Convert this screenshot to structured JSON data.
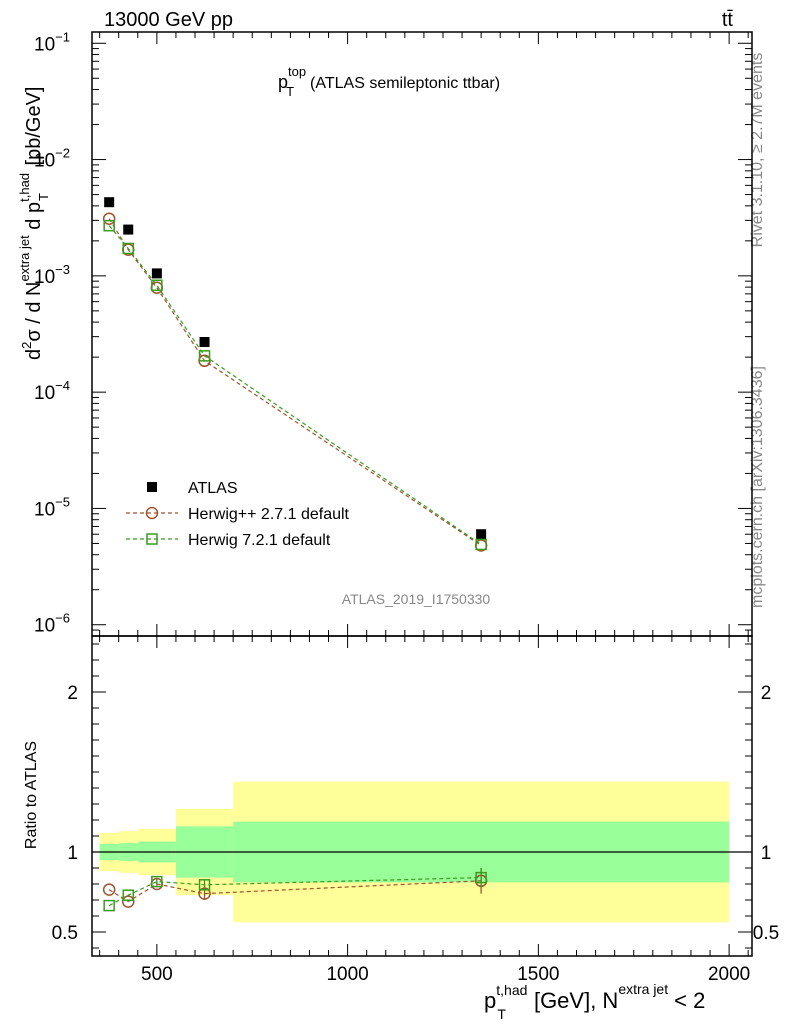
{
  "header": {
    "energy_label": "13000 GeV pp",
    "process_label": "tt̄"
  },
  "side_labels": {
    "rivet": "Rivet 3.1.10, ≥ 2.7M events",
    "mcplots": "mcplots.cern.ch [arXiv:1306.3436]"
  },
  "chart_data": [
    {
      "type": "scatter",
      "title_main": "p",
      "title_sup": "top",
      "title_sub": "T",
      "title_rest": "(ATLAS semileptonic ttbar)",
      "analysis_id": "ATLAS_2019_I1750330",
      "ylabel": "d²σ / d N^{extra jet} d p_T^{t,had} [pb/GeV]",
      "yscale": "log",
      "ylim": [
        8e-07,
        0.125
      ],
      "xlim": [
        330,
        2060
      ],
      "y_ticks": [
        {
          "v": 1e-06,
          "base": "10",
          "exp": "−6"
        },
        {
          "v": 1e-05,
          "base": "10",
          "exp": "−5"
        },
        {
          "v": 0.0001,
          "base": "10",
          "exp": "−4"
        },
        {
          "v": 0.001,
          "base": "10",
          "exp": "−3"
        },
        {
          "v": 0.01,
          "base": "10",
          "exp": "−2"
        },
        {
          "v": 0.1,
          "base": "10",
          "exp": "−1"
        }
      ],
      "legend_position": "bottom-left",
      "series": [
        {
          "name": "ATLAS",
          "style": "data",
          "color": "#000000",
          "x": [
            375,
            425,
            500,
            625,
            1350
          ],
          "y": [
            0.0043,
            0.0025,
            0.00105,
            0.00027,
            6e-06
          ]
        },
        {
          "name": "Herwig++ 2.7.1 default",
          "style": "circle",
          "color": "#a0522d",
          "x": [
            375,
            425,
            500,
            625,
            1350
          ],
          "y": [
            0.0031,
            0.00168,
            0.00079,
            0.000186,
            4.8e-06
          ]
        },
        {
          "name": "Herwig 7.2.1 default",
          "style": "square",
          "color": "#3a9b1f",
          "x": [
            375,
            425,
            500,
            625,
            1350
          ],
          "y": [
            0.0027,
            0.00172,
            0.00083,
            0.000205,
            4.9e-06
          ]
        }
      ]
    },
    {
      "type": "scatter",
      "ylabel": "Ratio to ATLAS",
      "xlabel_main": "p",
      "xlabel_sup": "t,had",
      "xlabel_sub": "T",
      "xlabel_mid": "[GeV], N",
      "xlabel_sup2": "extra jet",
      "xlabel_end": "< 2",
      "ylim": [
        0.35,
        2.35
      ],
      "xlim": [
        330,
        2060
      ],
      "x_ticks": [
        500,
        1000,
        1500,
        2000
      ],
      "y_ticks": [
        0.5,
        1,
        2
      ],
      "bands": [
        {
          "x0": 350,
          "x1": 400,
          "y_lo": 0.95,
          "y_hi": 1.05,
          "g_lo": 0.88,
          "g_hi": 1.12
        },
        {
          "x0": 400,
          "x1": 450,
          "y_lo": 0.945,
          "y_hi": 1.055,
          "g_lo": 0.87,
          "g_hi": 1.13
        },
        {
          "x0": 450,
          "x1": 550,
          "y_lo": 0.935,
          "y_hi": 1.065,
          "g_lo": 0.855,
          "g_hi": 1.145
        },
        {
          "x0": 550,
          "x1": 700,
          "y_lo": 0.84,
          "y_hi": 1.16,
          "g_lo": 0.73,
          "g_hi": 1.27
        },
        {
          "x0": 700,
          "x1": 2000,
          "y_lo": 0.81,
          "y_hi": 1.19,
          "g_lo": 0.56,
          "g_hi": 1.44
        }
      ],
      "series": [
        {
          "name": "Herwig++ 2.7.1 default",
          "style": "circle",
          "color": "#a0522d",
          "x": [
            375,
            425,
            500,
            625,
            1350
          ],
          "y": [
            0.765,
            0.69,
            0.8,
            0.74,
            0.82
          ],
          "err": [
            0,
            0,
            0.02,
            0.04,
            0.08
          ]
        },
        {
          "name": "Herwig 7.2.1 default",
          "style": "square",
          "color": "#3a9b1f",
          "x": [
            375,
            425,
            500,
            625,
            1350
          ],
          "y": [
            0.665,
            0.73,
            0.815,
            0.795,
            0.84
          ],
          "err": [
            0,
            0,
            0.02,
            0.03,
            0.06
          ]
        }
      ]
    }
  ]
}
